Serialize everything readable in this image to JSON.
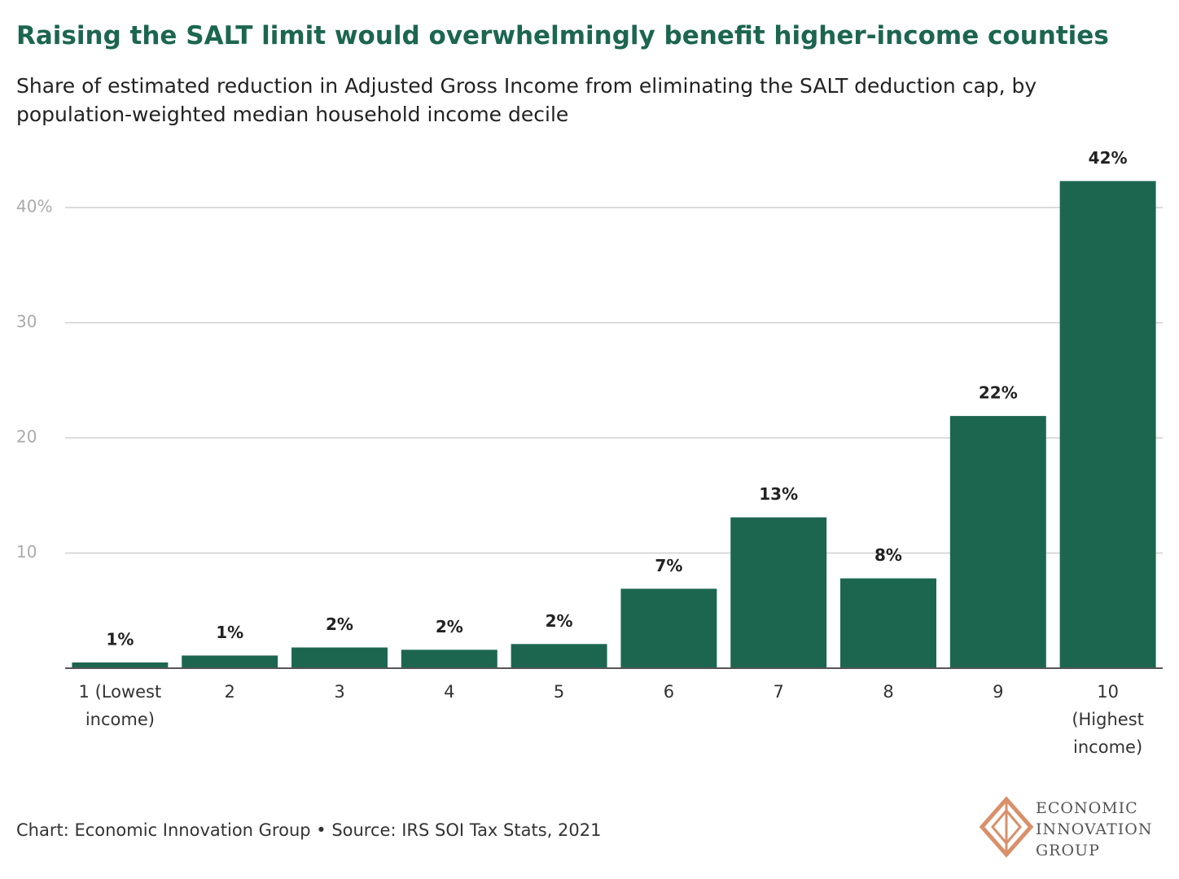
{
  "chart_data": {
    "type": "bar",
    "title": "Raising the SALT limit would overwhelmingly benefit higher-income counties",
    "subtitle": "Share of estimated reduction in Adjusted Gross Income from eliminating the SALT deduction cap, by population-weighted median household income decile",
    "categories": [
      "1 (Lowest income)",
      "2",
      "3",
      "4",
      "5",
      "6",
      "7",
      "8",
      "9",
      "10 (Highest income)"
    ],
    "values": [
      0.5,
      1.1,
      1.8,
      1.6,
      2.1,
      6.9,
      13.1,
      7.8,
      21.9,
      42.3
    ],
    "value_labels": [
      "1%",
      "1%",
      "2%",
      "2%",
      "2%",
      "7%",
      "13%",
      "8%",
      "22%",
      "42%"
    ],
    "color": "#1c6650",
    "ylim": [
      0,
      45
    ],
    "yticks": [
      10,
      20,
      30,
      {
        "value": 40,
        "label": "40%"
      }
    ],
    "grid": true,
    "source": "Chart: Economic Innovation Group • Source: IRS SOI Tax Stats, 2021",
    "logo": [
      "ECONOMIC",
      "INNOVATION",
      "GROUP"
    ]
  }
}
